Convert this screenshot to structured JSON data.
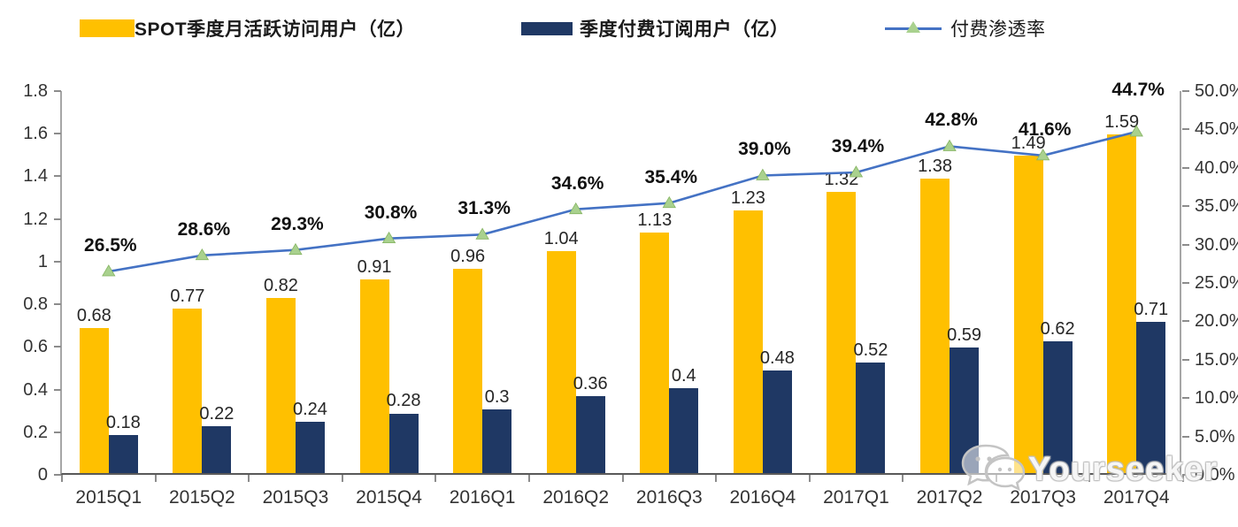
{
  "watermark": {
    "text": "Yourseeker",
    "icon": "wechat-chat-bubbles-icon"
  },
  "chart_data": {
    "type": "bar",
    "subtype": "combo-dual-axis-bar-line",
    "title": "",
    "categories": [
      "2015Q1",
      "2015Q2",
      "2015Q3",
      "2015Q4",
      "2016Q1",
      "2016Q2",
      "2016Q3",
      "2016Q4",
      "2017Q1",
      "2017Q2",
      "2017Q3",
      "2017Q4"
    ],
    "series": [
      {
        "name": "SPOT季度月活跃访问用户（亿）",
        "type": "bar",
        "axis": "left",
        "color": "#FFC000",
        "values": [
          0.68,
          0.77,
          0.82,
          0.91,
          0.96,
          1.04,
          1.13,
          1.23,
          1.32,
          1.38,
          1.49,
          1.59
        ],
        "labels": [
          "0.68",
          "0.77",
          "0.82",
          "0.91",
          "0.96",
          "1.04",
          "1.13",
          "1.23",
          "1.32",
          "1.38",
          "1.49",
          "1.59"
        ]
      },
      {
        "name": "季度付费订阅用户（亿）",
        "type": "bar",
        "axis": "left",
        "color": "#1F3864",
        "values": [
          0.18,
          0.22,
          0.24,
          0.28,
          0.3,
          0.36,
          0.4,
          0.48,
          0.52,
          0.59,
          0.62,
          0.71
        ],
        "labels": [
          "0.18",
          "0.22",
          "0.24",
          "0.28",
          "0.3",
          "0.36",
          "0.4",
          "0.48",
          "0.52",
          "0.59",
          "0.62",
          "0.71"
        ]
      },
      {
        "name": "付费渗透率",
        "type": "line",
        "axis": "right",
        "color": "#4472C4",
        "marker": "triangle",
        "marker_color": "#A9D18E",
        "values": [
          26.5,
          28.6,
          29.3,
          30.8,
          31.3,
          34.6,
          35.4,
          39.0,
          39.4,
          42.8,
          41.6,
          44.7
        ],
        "labels": [
          "26.5%",
          "28.6%",
          "29.3%",
          "30.8%",
          "31.3%",
          "34.6%",
          "35.4%",
          "39.0%",
          "39.4%",
          "42.8%",
          "41.6%",
          "44.7%"
        ]
      }
    ],
    "left_axis": {
      "min": 0,
      "max": 1.8,
      "tick_step": 0.2,
      "tick_labels": [
        "0",
        "0.2",
        "0.4",
        "0.6",
        "0.8",
        "1",
        "1.2",
        "1.4",
        "1.6",
        "1.8"
      ]
    },
    "right_axis": {
      "min": 0,
      "max": 50,
      "tick_step": 5,
      "tick_labels": [
        "0.0%",
        "5.0%",
        "10.0%",
        "15.0%",
        "20.0%",
        "25.0%",
        "30.0%",
        "35.0%",
        "40.0%",
        "45.0%",
        "50.0%"
      ]
    },
    "grid": false,
    "legend_position": "top",
    "pct_label_dy": [
      -41,
      -41,
      -41,
      -41,
      -41,
      -41,
      -41,
      -41,
      -41,
      -41,
      -41,
      -59
    ]
  }
}
